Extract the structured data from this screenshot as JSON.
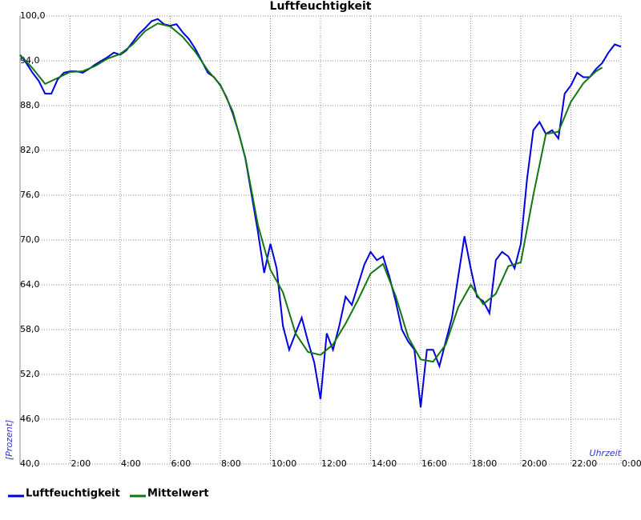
{
  "chart_data": {
    "type": "line",
    "title": "Luftfeuchtigkeit",
    "y_label": "[Prozent]",
    "x_label": "Uhrzeit",
    "xlim": [
      0,
      24
    ],
    "ylim": [
      40,
      100
    ],
    "xticks": [
      {
        "value": 2,
        "label": "2:00"
      },
      {
        "value": 4,
        "label": "4:00"
      },
      {
        "value": 6,
        "label": "6:00"
      },
      {
        "value": 8,
        "label": "8:00"
      },
      {
        "value": 10,
        "label": "10:00"
      },
      {
        "value": 12,
        "label": "12:00"
      },
      {
        "value": 14,
        "label": "14:00"
      },
      {
        "value": 16,
        "label": "16:00"
      },
      {
        "value": 18,
        "label": "18:00"
      },
      {
        "value": 20,
        "label": "20:00"
      },
      {
        "value": 22,
        "label": "22:00"
      },
      {
        "value": 24,
        "label": "0:00"
      }
    ],
    "yticks": [
      {
        "value": 40,
        "label": "40,0"
      },
      {
        "value": 46,
        "label": "46,0"
      },
      {
        "value": 52,
        "label": "52,0"
      },
      {
        "value": 58,
        "label": "58,0"
      },
      {
        "value": 64,
        "label": "64,0"
      },
      {
        "value": 70,
        "label": "70,0"
      },
      {
        "value": 76,
        "label": "76,0"
      },
      {
        "value": 82,
        "label": "82,0"
      },
      {
        "value": 88,
        "label": "88,0"
      },
      {
        "value": 94,
        "label": "94,0"
      },
      {
        "value": 100,
        "label": "100,0"
      }
    ],
    "grid": true,
    "legend": "bottom-left",
    "series": [
      {
        "name": "Luftfeuchtigkeit",
        "color": "#0000dd",
        "x": [
          0,
          0.25,
          0.5,
          0.75,
          1,
          1.25,
          1.5,
          1.75,
          2,
          2.25,
          2.5,
          2.75,
          3,
          3.25,
          3.5,
          3.75,
          4,
          4.25,
          4.5,
          4.75,
          5,
          5.25,
          5.5,
          5.75,
          6,
          6.25,
          6.5,
          6.75,
          7,
          7.25,
          7.5,
          7.75,
          8,
          8.25,
          8.5,
          8.75,
          9,
          9.25,
          9.5,
          9.75,
          10,
          10.25,
          10.5,
          10.75,
          11,
          11.25,
          11.5,
          11.75,
          12,
          12.25,
          12.5,
          12.75,
          13,
          13.25,
          13.5,
          13.75,
          14,
          14.25,
          14.5,
          14.75,
          15,
          15.25,
          15.5,
          15.75,
          16,
          16.25,
          16.5,
          16.75,
          17,
          17.25,
          17.5,
          17.75,
          18,
          18.25,
          18.5,
          18.75,
          19,
          19.25,
          19.5,
          19.75,
          20,
          20.25,
          20.5,
          20.75,
          21,
          21.25,
          21.5,
          21.75,
          22,
          22.25,
          22.5,
          22.75,
          23,
          23.25,
          23.5,
          23.75,
          24
        ],
        "values": [
          94.8,
          93.7,
          92.4,
          91.3,
          89.6,
          89.6,
          91.5,
          92.4,
          92.6,
          92.6,
          92.4,
          92.9,
          93.5,
          94.0,
          94.5,
          95.1,
          94.8,
          95.4,
          96.5,
          97.6,
          98.4,
          99.3,
          99.6,
          98.9,
          98.7,
          98.9,
          97.8,
          96.9,
          95.6,
          94.0,
          92.4,
          91.8,
          90.7,
          89.1,
          86.9,
          84.2,
          80.9,
          76.0,
          71.1,
          65.6,
          69.5,
          66.2,
          58.5,
          55.3,
          57.5,
          59.6,
          56.4,
          53.6,
          48.7,
          57.5,
          55.3,
          58.5,
          62.4,
          61.3,
          64.0,
          66.7,
          68.4,
          67.3,
          67.8,
          65.1,
          61.8,
          58.0,
          56.4,
          55.3,
          47.6,
          55.3,
          55.3,
          53.1,
          56.4,
          59.6,
          65.1,
          70.5,
          66.2,
          62.4,
          61.8,
          60.2,
          67.3,
          68.4,
          67.8,
          66.2,
          69.5,
          78.2,
          84.7,
          85.8,
          84.2,
          84.7,
          83.6,
          89.6,
          90.7,
          92.4,
          91.8,
          91.8,
          92.9,
          93.7,
          95.1,
          96.2,
          95.9
        ]
      },
      {
        "name": "Mittelwert",
        "color": "#117711",
        "x": [
          0,
          0.5,
          1,
          1.5,
          2,
          2.5,
          3,
          3.5,
          4,
          4.5,
          5,
          5.5,
          6,
          6.5,
          7,
          7.5,
          8,
          8.5,
          9,
          9.5,
          10,
          10.5,
          11,
          11.5,
          12,
          12.5,
          13,
          13.5,
          14,
          14.5,
          15,
          15.5,
          16,
          16.5,
          17,
          17.5,
          18,
          18.5,
          19,
          19.5,
          20,
          20.5,
          21,
          21.5,
          22,
          22.5,
          23,
          23.25
        ],
        "values": [
          94.8,
          93.0,
          90.9,
          91.7,
          92.5,
          92.6,
          93.3,
          94.3,
          94.9,
          96.2,
          98.0,
          99.0,
          98.6,
          97.2,
          95.2,
          92.7,
          90.8,
          87.2,
          81.0,
          72.0,
          66.0,
          63.0,
          57.5,
          55.0,
          54.6,
          56.0,
          58.8,
          62.0,
          65.5,
          66.8,
          62.5,
          57.0,
          54.0,
          53.7,
          56.0,
          61.0,
          64.0,
          61.4,
          62.8,
          66.5,
          67.0,
          76.0,
          84.2,
          84.5,
          88.5,
          91.0,
          92.6,
          93.1
        ]
      }
    ]
  }
}
